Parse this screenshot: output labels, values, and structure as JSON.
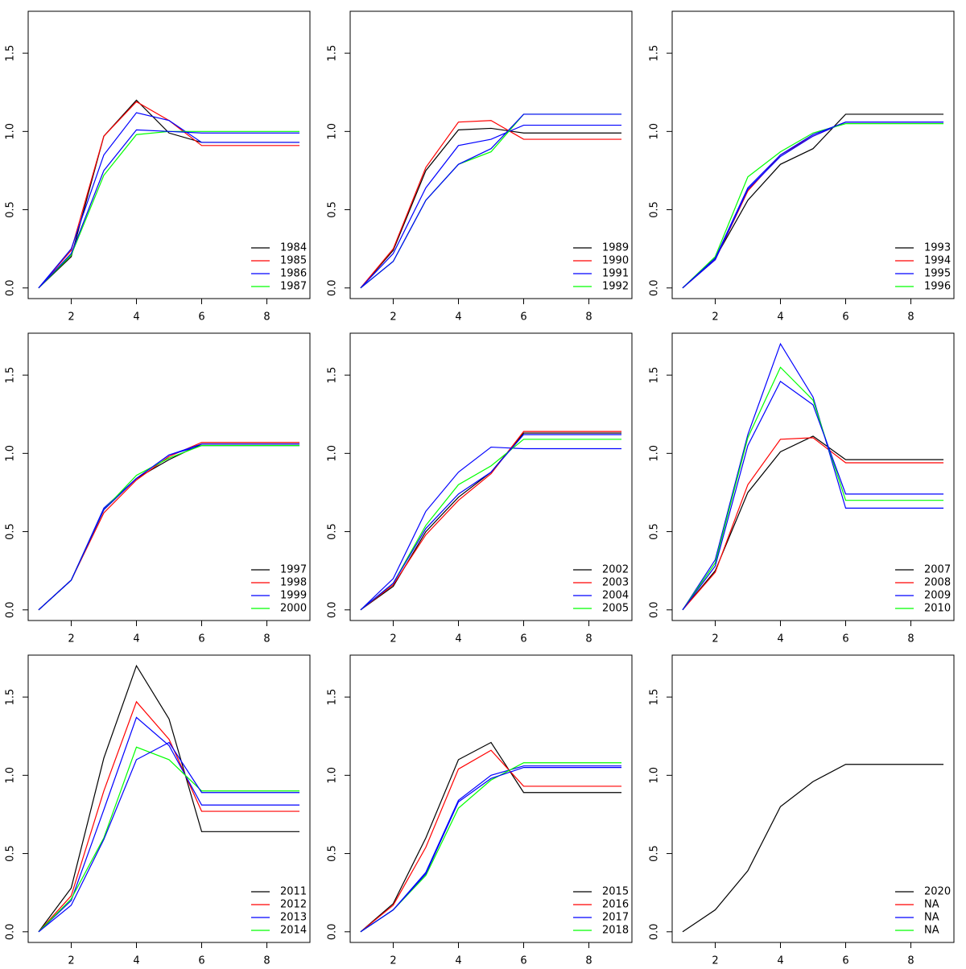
{
  "chart_data": [
    {
      "type": "line",
      "x": [
        1,
        2,
        3,
        4,
        5,
        6,
        7,
        8,
        9
      ],
      "xlim": [
        0.68,
        9.32
      ],
      "ylim": [
        -0.068,
        1.768
      ],
      "xticks": [
        2,
        4,
        6,
        8
      ],
      "yticks": [
        {
          "value": 0,
          "label": "0.0"
        },
        0.5,
        {
          "value": 1,
          "label": "1.0"
        },
        1.5
      ],
      "legend": "bottomright",
      "series": [
        {
          "name": "1984",
          "color": "#000000",
          "values": [
            0,
            0.2,
            0.97,
            1.2,
            0.99,
            0.93,
            0.93,
            0.93,
            0.93
          ]
        },
        {
          "name": "1985",
          "color": "#ff0000",
          "values": [
            0,
            0.24,
            0.97,
            1.19,
            1.07,
            0.91,
            0.91,
            0.91,
            0.91
          ]
        },
        {
          "name": "1986",
          "color": "#0000ff",
          "values": [
            0,
            0.25,
            0.85,
            1.12,
            1.07,
            0.93,
            0.93,
            0.93,
            0.93
          ]
        },
        {
          "name": "1987",
          "color": "#00ff00",
          "values": [
            0,
            0.21,
            0.72,
            0.98,
            1.0,
            1.0,
            1.0,
            1.0,
            1.0
          ]
        },
        {
          "color": "#0000ff",
          "values": [
            0,
            0.22,
            0.75,
            1.01,
            1.0,
            0.99,
            0.99,
            0.99,
            0.99
          ]
        }
      ]
    },
    {
      "type": "line",
      "x": [
        1,
        2,
        3,
        4,
        5,
        6,
        7,
        8,
        9
      ],
      "xlim": [
        0.68,
        9.32
      ],
      "ylim": [
        -0.068,
        1.768
      ],
      "xticks": [
        2,
        4,
        6,
        8
      ],
      "yticks": [
        {
          "value": 0,
          "label": "0.0"
        },
        0.5,
        {
          "value": 1,
          "label": "1.0"
        },
        1.5
      ],
      "legend": "bottomright",
      "series": [
        {
          "name": "1989",
          "color": "#000000",
          "values": [
            0,
            0.24,
            0.75,
            1.01,
            1.02,
            0.99,
            0.99,
            0.99,
            0.99
          ]
        },
        {
          "name": "1990",
          "color": "#ff0000",
          "values": [
            0,
            0.25,
            0.77,
            1.06,
            1.07,
            0.95,
            0.95,
            0.95,
            0.95
          ]
        },
        {
          "name": "1991",
          "color": "#0000ff",
          "values": [
            0,
            0.22,
            0.64,
            0.91,
            0.95,
            1.04,
            1.04,
            1.04,
            1.04
          ]
        },
        {
          "name": "1992",
          "color": "#00ff00",
          "values": [
            0,
            0.17,
            0.56,
            0.79,
            0.87,
            1.11,
            1.11,
            1.11,
            1.11
          ]
        },
        {
          "color": "#0000ff",
          "values": [
            0,
            0.17,
            0.56,
            0.79,
            0.89,
            1.11,
            1.11,
            1.11,
            1.11
          ]
        }
      ]
    },
    {
      "type": "line",
      "x": [
        1,
        2,
        3,
        4,
        5,
        6,
        7,
        8,
        9
      ],
      "xlim": [
        0.68,
        9.32
      ],
      "ylim": [
        -0.068,
        1.768
      ],
      "xticks": [
        2,
        4,
        6,
        8
      ],
      "yticks": [
        {
          "value": 0,
          "label": "0.0"
        },
        0.5,
        {
          "value": 1,
          "label": "1.0"
        },
        1.5
      ],
      "legend": "bottomright",
      "series": [
        {
          "name": "1993",
          "color": "#000000",
          "values": [
            0,
            0.19,
            0.56,
            0.79,
            0.89,
            1.11,
            1.11,
            1.11,
            1.11
          ]
        },
        {
          "name": "1994",
          "color": "#ff0000",
          "values": [
            0,
            0.18,
            0.62,
            0.85,
            0.97,
            1.06,
            1.06,
            1.06,
            1.06
          ]
        },
        {
          "name": "1995",
          "color": "#0000ff",
          "values": [
            0,
            0.18,
            0.63,
            0.84,
            0.97,
            1.06,
            1.06,
            1.06,
            1.06
          ]
        },
        {
          "name": "1996",
          "color": "#00ff00",
          "values": [
            0,
            0.2,
            0.71,
            0.87,
            0.99,
            1.05,
            1.05,
            1.05,
            1.05
          ]
        },
        {
          "color": "#0000ff",
          "values": [
            0,
            0.19,
            0.64,
            0.85,
            0.98,
            1.06,
            1.06,
            1.06,
            1.06
          ]
        }
      ]
    },
    {
      "type": "line",
      "x": [
        1,
        2,
        3,
        4,
        5,
        6,
        7,
        8,
        9
      ],
      "xlim": [
        0.68,
        9.32
      ],
      "ylim": [
        -0.068,
        1.768
      ],
      "xticks": [
        2,
        4,
        6,
        8
      ],
      "yticks": [
        {
          "value": 0,
          "label": "0.0"
        },
        0.5,
        {
          "value": 1,
          "label": "1.0"
        },
        1.5
      ],
      "legend": "bottomright",
      "series": [
        {
          "name": "1997",
          "color": "#000000",
          "values": [
            0,
            0.19,
            0.64,
            0.84,
            0.96,
            1.06,
            1.06,
            1.06,
            1.06
          ]
        },
        {
          "name": "1998",
          "color": "#ff0000",
          "values": [
            0,
            0.19,
            0.62,
            0.83,
            0.98,
            1.07,
            1.07,
            1.07,
            1.07
          ]
        },
        {
          "name": "1999",
          "color": "#0000ff",
          "values": [
            0,
            0.19,
            0.65,
            0.84,
            0.99,
            1.05,
            1.05,
            1.05,
            1.05
          ]
        },
        {
          "name": "2000",
          "color": "#00ff00",
          "values": [
            0,
            0.19,
            0.64,
            0.86,
            0.97,
            1.05,
            1.05,
            1.05,
            1.05
          ]
        },
        {
          "color": "#0000ff",
          "values": [
            0,
            0.19,
            0.64,
            0.84,
            0.99,
            1.06,
            1.06,
            1.06,
            1.06
          ]
        }
      ]
    },
    {
      "type": "line",
      "x": [
        1,
        2,
        3,
        4,
        5,
        6,
        7,
        8,
        9
      ],
      "xlim": [
        0.68,
        9.32
      ],
      "ylim": [
        -0.068,
        1.768
      ],
      "xticks": [
        2,
        4,
        6,
        8
      ],
      "yticks": [
        {
          "value": 0,
          "label": "0.0"
        },
        0.5,
        {
          "value": 1,
          "label": "1.0"
        },
        1.5
      ],
      "legend": "bottomright",
      "series": [
        {
          "name": "2002",
          "color": "#000000",
          "values": [
            0,
            0.15,
            0.5,
            0.72,
            0.88,
            1.13,
            1.13,
            1.13,
            1.13
          ]
        },
        {
          "name": "2003",
          "color": "#ff0000",
          "values": [
            0,
            0.16,
            0.48,
            0.7,
            0.87,
            1.14,
            1.14,
            1.14,
            1.14
          ]
        },
        {
          "name": "2004",
          "color": "#0000ff",
          "values": [
            0,
            0.2,
            0.63,
            0.88,
            1.04,
            1.03,
            1.03,
            1.03,
            1.03
          ]
        },
        {
          "name": "2005",
          "color": "#00ff00",
          "values": [
            0,
            0.17,
            0.54,
            0.8,
            0.92,
            1.09,
            1.09,
            1.09,
            1.09
          ]
        },
        {
          "color": "#0000ff",
          "values": [
            0,
            0.17,
            0.52,
            0.74,
            0.88,
            1.12,
            1.12,
            1.12,
            1.12
          ]
        }
      ]
    },
    {
      "type": "line",
      "x": [
        1,
        2,
        3,
        4,
        5,
        6,
        7,
        8,
        9
      ],
      "xlim": [
        0.68,
        9.32
      ],
      "ylim": [
        -0.068,
        1.768
      ],
      "xticks": [
        2,
        4,
        6,
        8
      ],
      "yticks": [
        {
          "value": 0,
          "label": "0.0"
        },
        0.5,
        {
          "value": 1,
          "label": "1.0"
        },
        1.5
      ],
      "legend": "bottomright",
      "series": [
        {
          "name": "2007",
          "color": "#000000",
          "values": [
            0,
            0.25,
            0.75,
            1.01,
            1.11,
            0.96,
            0.96,
            0.96,
            0.96
          ]
        },
        {
          "name": "2008",
          "color": "#ff0000",
          "values": [
            0,
            0.24,
            0.8,
            1.09,
            1.1,
            0.94,
            0.94,
            0.94,
            0.94
          ]
        },
        {
          "name": "2009",
          "color": "#0000ff",
          "values": [
            0,
            0.32,
            1.12,
            1.7,
            1.36,
            0.65,
            0.65,
            0.65,
            0.65
          ]
        },
        {
          "name": "2010",
          "color": "#00ff00",
          "values": [
            0,
            0.3,
            1.1,
            1.55,
            1.34,
            0.7,
            0.7,
            0.7,
            0.7
          ]
        },
        {
          "color": "#0000ff",
          "values": [
            0,
            0.28,
            1.05,
            1.46,
            1.31,
            0.74,
            0.74,
            0.74,
            0.74
          ]
        }
      ]
    },
    {
      "type": "line",
      "x": [
        1,
        2,
        3,
        4,
        5,
        6,
        7,
        8,
        9
      ],
      "xlim": [
        0.68,
        9.32
      ],
      "ylim": [
        -0.068,
        1.768
      ],
      "xticks": [
        2,
        4,
        6,
        8
      ],
      "yticks": [
        {
          "value": 0,
          "label": "0.0"
        },
        0.5,
        {
          "value": 1,
          "label": "1.0"
        },
        1.5
      ],
      "legend": "bottomright",
      "series": [
        {
          "name": "2011",
          "color": "#000000",
          "values": [
            0,
            0.28,
            1.11,
            1.7,
            1.36,
            0.64,
            0.64,
            0.64,
            0.64
          ]
        },
        {
          "name": "2012",
          "color": "#ff0000",
          "values": [
            0,
            0.23,
            0.9,
            1.47,
            1.23,
            0.77,
            0.77,
            0.77,
            0.77
          ]
        },
        {
          "name": "2013",
          "color": "#0000ff",
          "values": [
            0,
            0.2,
            0.78,
            1.37,
            1.19,
            0.81,
            0.81,
            0.81,
            0.81
          ]
        },
        {
          "name": "2014",
          "color": "#00ff00",
          "values": [
            0,
            0.21,
            0.6,
            1.18,
            1.1,
            0.9,
            0.9,
            0.9,
            0.9
          ]
        },
        {
          "color": "#0000ff",
          "values": [
            0,
            0.17,
            0.59,
            1.1,
            1.21,
            0.89,
            0.89,
            0.89,
            0.89
          ]
        }
      ]
    },
    {
      "type": "line",
      "x": [
        1,
        2,
        3,
        4,
        5,
        6,
        7,
        8,
        9
      ],
      "xlim": [
        0.68,
        9.32
      ],
      "ylim": [
        -0.068,
        1.768
      ],
      "xticks": [
        2,
        4,
        6,
        8
      ],
      "yticks": [
        {
          "value": 0,
          "label": "0.0"
        },
        0.5,
        {
          "value": 1,
          "label": "1.0"
        },
        1.5
      ],
      "legend": "bottomright",
      "series": [
        {
          "name": "2015",
          "color": "#000000",
          "values": [
            0,
            0.18,
            0.6,
            1.1,
            1.21,
            0.89,
            0.89,
            0.89,
            0.89
          ]
        },
        {
          "name": "2016",
          "color": "#ff0000",
          "values": [
            0,
            0.17,
            0.54,
            1.04,
            1.16,
            0.93,
            0.93,
            0.93,
            0.93
          ]
        },
        {
          "name": "2017",
          "color": "#0000ff",
          "values": [
            0,
            0.14,
            0.38,
            0.84,
            1.0,
            1.06,
            1.06,
            1.06,
            1.06
          ]
        },
        {
          "name": "2018",
          "color": "#00ff00",
          "values": [
            0,
            0.14,
            0.36,
            0.79,
            0.97,
            1.08,
            1.08,
            1.08,
            1.08
          ]
        },
        {
          "color": "#0000ff",
          "values": [
            0,
            0.14,
            0.37,
            0.83,
            0.98,
            1.05,
            1.05,
            1.05,
            1.05
          ]
        }
      ]
    },
    {
      "type": "line",
      "x": [
        1,
        2,
        3,
        4,
        5,
        6,
        7,
        8,
        9
      ],
      "xlim": [
        0.68,
        9.32
      ],
      "ylim": [
        -0.068,
        1.768
      ],
      "xticks": [
        2,
        4,
        6,
        8
      ],
      "yticks": [
        {
          "value": 0,
          "label": "0.0"
        },
        0.5,
        {
          "value": 1,
          "label": "1.0"
        },
        1.5
      ],
      "legend": "bottomright",
      "series": [
        {
          "name": "2020",
          "color": "#000000",
          "values": [
            0,
            0.14,
            0.39,
            0.8,
            0.96,
            1.07,
            1.07,
            1.07,
            1.07
          ]
        },
        {
          "name": "NA",
          "color": "#ff0000",
          "values": [
            null,
            null,
            null,
            null,
            null,
            null,
            null,
            null,
            null
          ]
        },
        {
          "name": "NA",
          "color": "#0000ff",
          "values": [
            null,
            null,
            null,
            null,
            null,
            null,
            null,
            null,
            null
          ]
        },
        {
          "name": "NA",
          "color": "#00ff00",
          "values": [
            null,
            null,
            null,
            null,
            null,
            null,
            null,
            null,
            null
          ]
        }
      ]
    }
  ]
}
